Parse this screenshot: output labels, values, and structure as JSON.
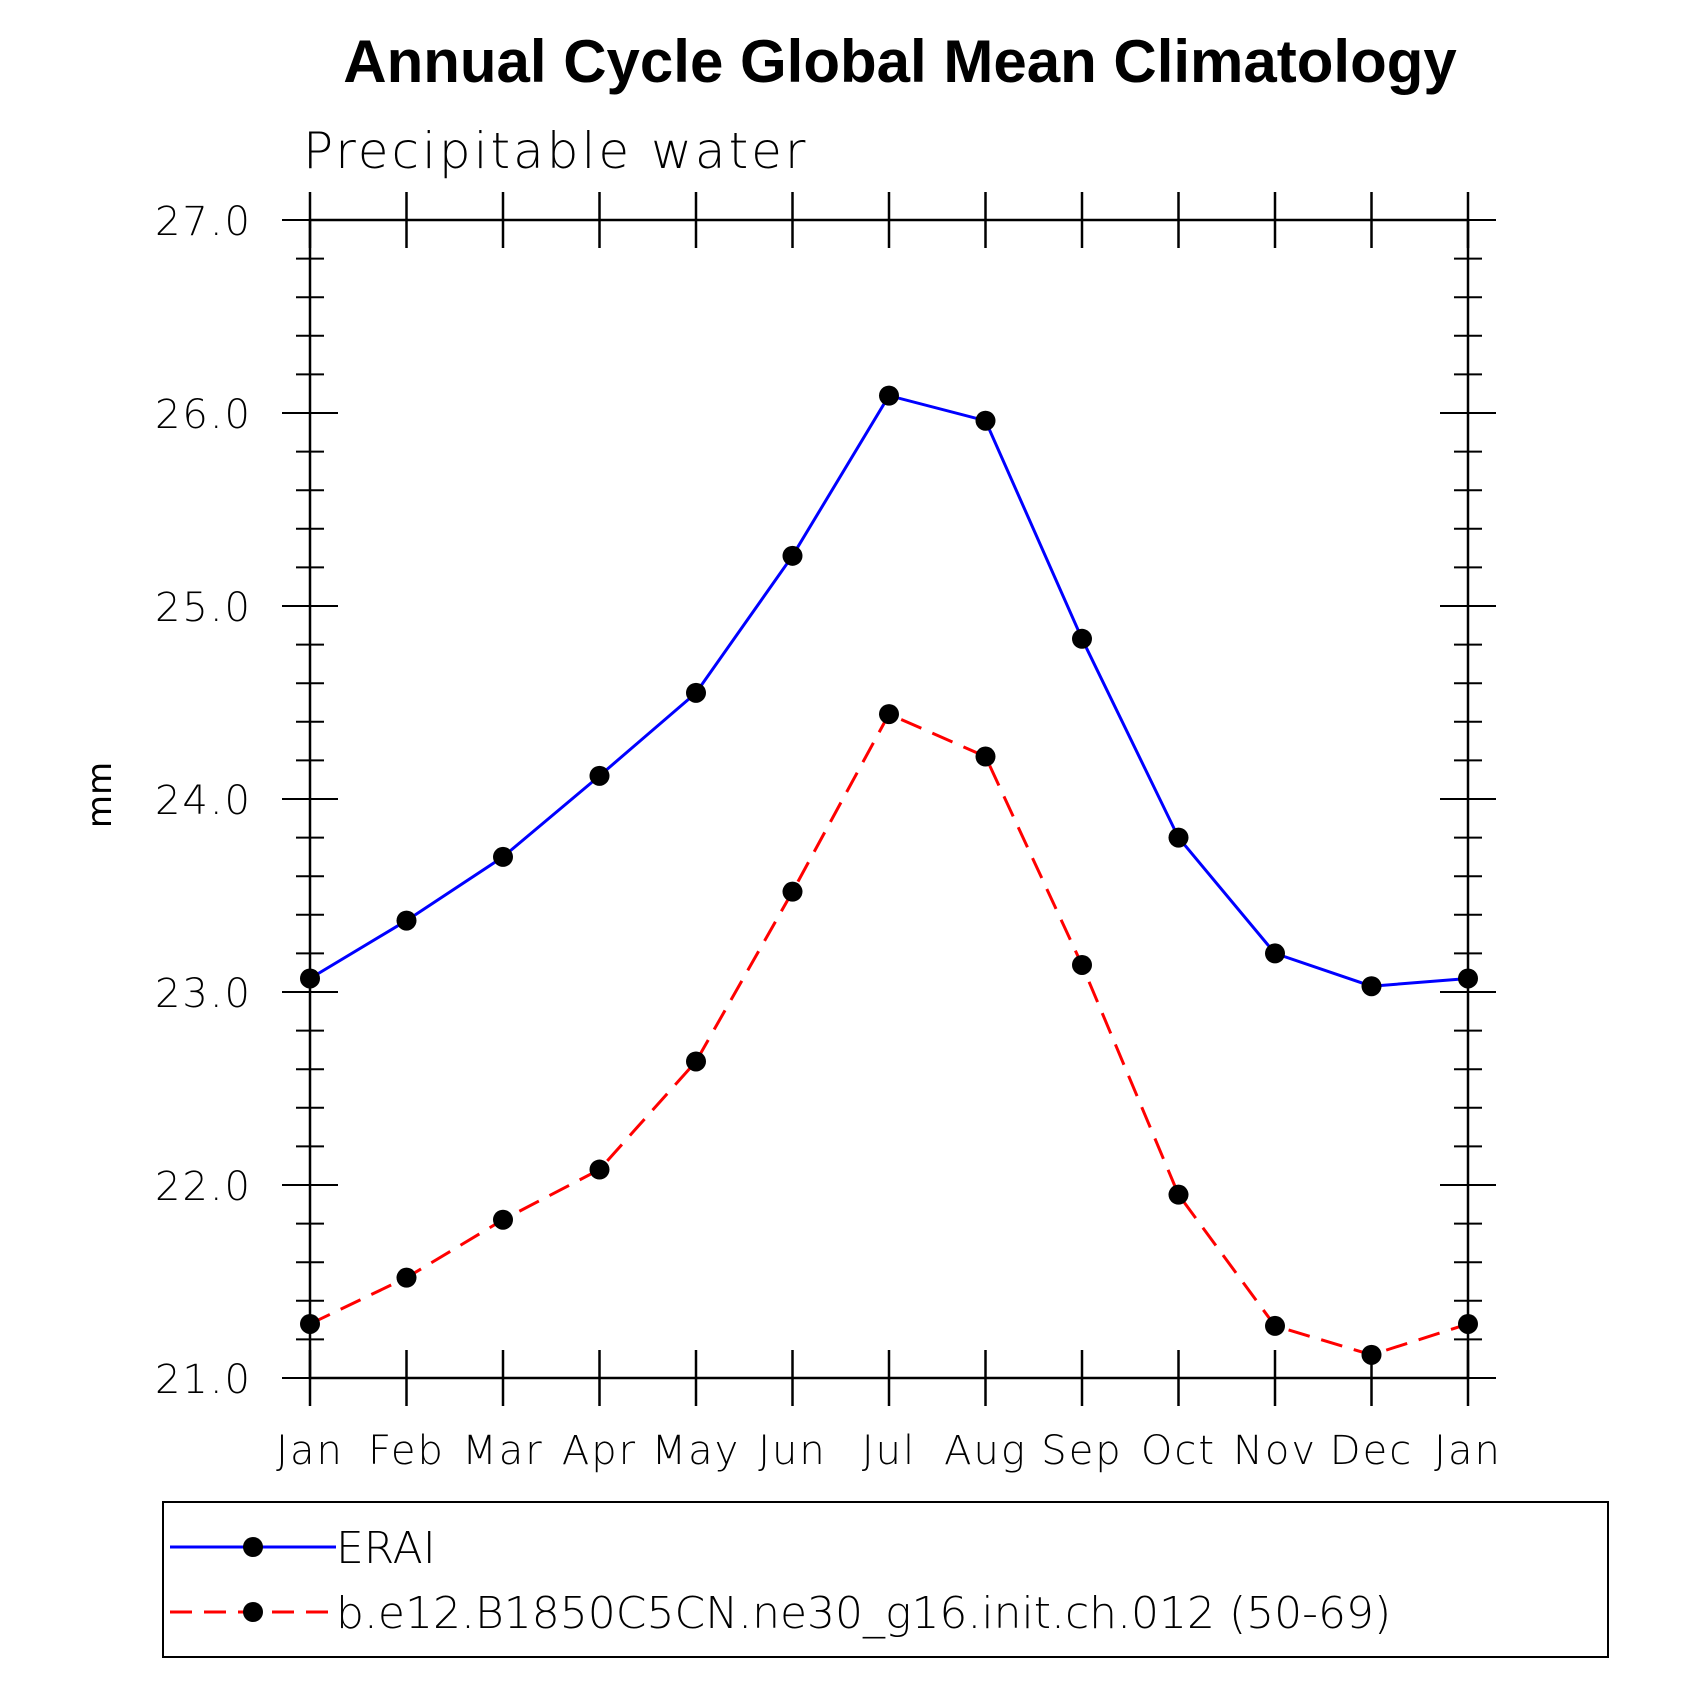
{
  "chart_data": {
    "type": "line",
    "title": "Annual Cycle Global Mean Climatology",
    "subtitle": "Precipitable water",
    "xlabel": "",
    "ylabel": "mm",
    "categories": [
      "Jan",
      "Feb",
      "Mar",
      "Apr",
      "May",
      "Jun",
      "Jul",
      "Aug",
      "Sep",
      "Oct",
      "Nov",
      "Dec",
      "Jan"
    ],
    "ylim": [
      21.0,
      27.0
    ],
    "yticks": [
      "21.0",
      "22.0",
      "23.0",
      "24.0",
      "25.0",
      "26.0",
      "27.0"
    ],
    "grid": false,
    "legend_position": "bottom",
    "series": [
      {
        "name": "ERAI",
        "color": "#0000ff",
        "line_style": "solid",
        "marker": "filled-circle",
        "values": [
          23.07,
          23.37,
          23.7,
          24.12,
          24.55,
          25.26,
          26.09,
          25.96,
          24.83,
          23.8,
          23.2,
          23.03,
          23.07
        ]
      },
      {
        "name": "b.e12.B1850C5CN.ne30_g16.init.ch.012 (50-69)",
        "color": "#ff0000",
        "line_style": "dashed",
        "marker": "filled-circle",
        "values": [
          21.28,
          21.52,
          21.82,
          22.08,
          22.64,
          23.52,
          24.44,
          24.22,
          23.14,
          21.95,
          21.27,
          21.12,
          21.28
        ]
      }
    ]
  }
}
